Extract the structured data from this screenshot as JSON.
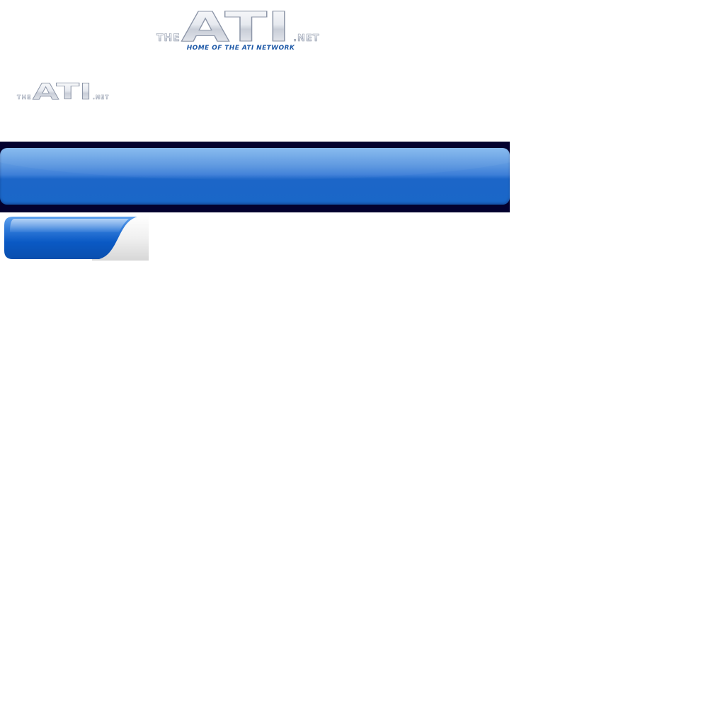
{
  "logo_large": {
    "prefix": "THE",
    "main": "ATI",
    "suffix": ".NET",
    "tagline": "HOME OF THE ATI NETWORK"
  },
  "logo_small": {
    "prefix": "THE",
    "main": "ATI",
    "suffix": ".NET"
  },
  "colors": {
    "header_bar_background": "#03012f",
    "header_blue_top": "#80b6ee",
    "header_blue_bottom": "#1a67c8",
    "tagline_blue": "#1f5aa8",
    "tab_blue": "#0a59c4"
  }
}
